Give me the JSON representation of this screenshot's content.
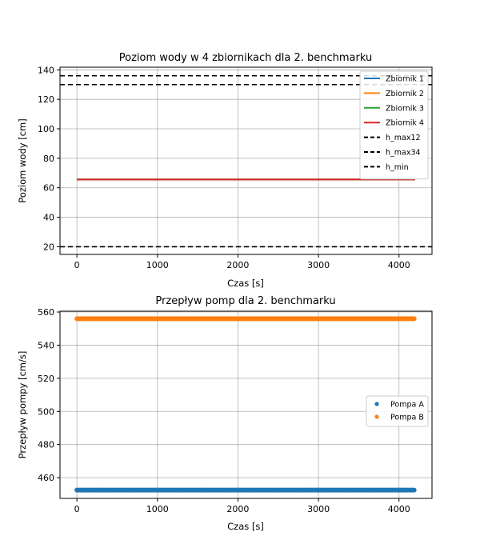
{
  "chart_data": [
    {
      "type": "line",
      "title": "Poziom wody w 4 zbiornikach dla 2. benchmarku",
      "xlabel": "Czas [s]",
      "ylabel": "Poziom wody [cm]",
      "xlim": [
        -210,
        4410
      ],
      "ylim": [
        14.8,
        141.8
      ],
      "xticks": [
        0,
        1000,
        2000,
        3000,
        4000
      ],
      "yticks": [
        20,
        40,
        60,
        80,
        100,
        120,
        140
      ],
      "grid": true,
      "legend": "top-right",
      "series": [
        {
          "name": "Zbiornik 1",
          "color": "#1f77b4",
          "x": [
            0,
            4200
          ],
          "values": [
            65.6,
            65.6
          ]
        },
        {
          "name": "Zbiornik 2",
          "color": "#ff7f0e",
          "x": [
            0,
            4200
          ],
          "values": [
            65.6,
            65.6
          ]
        },
        {
          "name": "Zbiornik 3",
          "color": "#2ca02c",
          "x": [
            0,
            4200
          ],
          "values": [
            65.6,
            65.6
          ]
        },
        {
          "name": "Zbiornik 4",
          "color": "#d62728",
          "x": [
            0,
            4200
          ],
          "values": [
            65.6,
            65.6
          ]
        }
      ],
      "hlines": [
        {
          "name": "h_max12",
          "value": 136,
          "color": "#000000",
          "style": "dashed"
        },
        {
          "name": "h_max34",
          "value": 130,
          "color": "#000000",
          "style": "dashed"
        },
        {
          "name": "h_min",
          "value": 20,
          "color": "#000000",
          "style": "dashed"
        }
      ]
    },
    {
      "type": "scatter",
      "title": "Przepływ pomp dla 2. benchmarku",
      "xlabel": "Czas [s]",
      "ylabel": "Przepływ pompy [cm/s]",
      "xlim": [
        -210,
        4410
      ],
      "ylim": [
        447.5,
        560.5
      ],
      "xticks": [
        0,
        1000,
        2000,
        3000,
        4000
      ],
      "yticks": [
        460,
        480,
        500,
        520,
        540,
        560
      ],
      "grid": true,
      "legend": "center-right",
      "series": [
        {
          "name": "Pompa A",
          "color": "#1f77b4",
          "x_start": 0,
          "x_end": 4200,
          "value": 452.5
        },
        {
          "name": "Pompa B",
          "color": "#ff7f0e",
          "x_start": 0,
          "x_end": 4200,
          "value": 556
        }
      ]
    }
  ]
}
